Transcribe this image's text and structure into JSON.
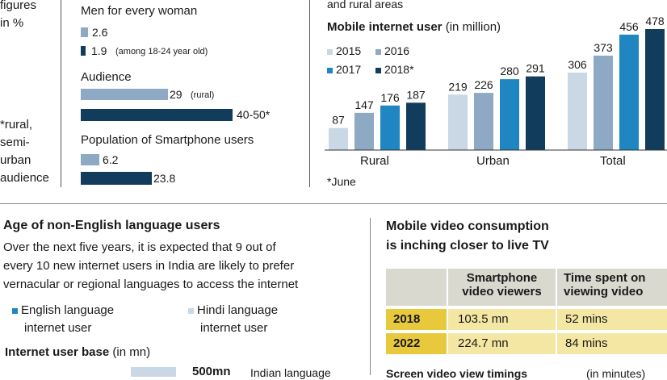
{
  "left_panel": {
    "figures_note": [
      "figures",
      "in %"
    ],
    "audience_note": [
      "*rural,",
      "semi-",
      "urban",
      "audience"
    ]
  },
  "middle_panel": {
    "men_title": "Men for every woman",
    "men_bars": [
      {
        "value_label": "2.6",
        "suffix": "",
        "color": "#8da9c4"
      },
      {
        "value_label": "1.9",
        "suffix": "(among 18-24 year old)",
        "color": "#123c5c"
      }
    ],
    "audience_title": "Audience",
    "audience_bars": [
      {
        "value_label": "29",
        "suffix": "(rural)",
        "color": "#8da9c4"
      },
      {
        "value_label": "40-50*",
        "suffix": "",
        "color": "#123c5c"
      }
    ],
    "smartphone_title": "Population of Smartphone users",
    "smartphone_bars": [
      {
        "value_label": "6.2",
        "color": "#8da9c4"
      },
      {
        "value_label": "23.8",
        "color": "#123c5c"
      }
    ]
  },
  "chart_data": {
    "type": "bar",
    "header_note": "and rural areas",
    "title": "Mobile internet user",
    "title_unit": "(in million)",
    "categories": [
      "Rural",
      "Urban",
      "Total"
    ],
    "series": [
      {
        "name": "2015",
        "values": [
          87,
          219,
          306
        ],
        "color": "#c9d8e4"
      },
      {
        "name": "2016",
        "values": [
          147,
          226,
          373
        ],
        "color": "#8da9c4"
      },
      {
        "name": "2017",
        "values": [
          176,
          280,
          456
        ],
        "color": "#1f86c2"
      },
      {
        "name": "2018*",
        "values": [
          187,
          291,
          478
        ],
        "color": "#123c5c"
      }
    ],
    "footnote": "*June"
  },
  "age_section": {
    "title": "Age of non-English language users",
    "body_lines": [
      "Over the next five years, it is expected that 9 out of",
      "every 10 new internet users in India are likely to prefer",
      "vernacular or regional languages to access the internet"
    ],
    "legend": [
      {
        "label_lines": [
          "English language",
          "internet user"
        ],
        "color": "#1f86c2"
      },
      {
        "label_lines": [
          "Hindi language",
          "internet user"
        ],
        "color": "#c9d8e4"
      }
    ],
    "base_title": "Internet user base",
    "base_unit": "(in mn)",
    "bottom_value": "500mn",
    "bottom_text": "Indian language"
  },
  "video_section": {
    "title_lines": [
      "Mobile video consumption",
      "is inching closer to live TV"
    ],
    "table": {
      "headers": [
        [
          "Smartphone",
          "video viewers"
        ],
        [
          "Time spent on",
          "viewing video"
        ]
      ],
      "rows": [
        {
          "year": "2018",
          "viewers": "103.5 mn",
          "time": "52 mins"
        },
        {
          "year": "2022",
          "viewers": "224.7 mn",
          "time": "84 mins"
        }
      ]
    },
    "bottom_title": "Screen video view timings",
    "bottom_unit": "(in minutes)"
  }
}
